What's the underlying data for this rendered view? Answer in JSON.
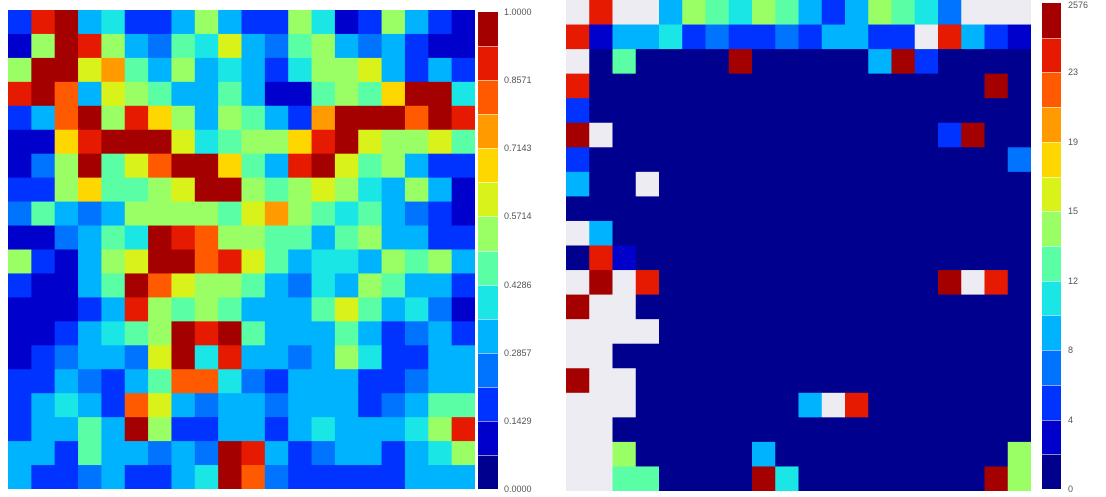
{
  "chart_data": [
    {
      "type": "heatmap",
      "title": "",
      "xlabel": "",
      "ylabel": "",
      "colorbar": {
        "min": 0.0,
        "max": 1.0,
        "levels": 14,
        "tick_labels": [
          "1.0000",
          "0.8571",
          "0.7143",
          "0.5714",
          "0.4286",
          "0.2857",
          "0.1429",
          "0.0000"
        ],
        "tick_values": [
          1.0,
          0.8571,
          0.7143,
          0.5714,
          0.4286,
          0.2857,
          0.1429,
          0.0
        ]
      },
      "grid": [
        [
          0.15,
          0.9,
          1.0,
          0.3,
          0.4,
          0.2,
          0.15,
          0.35,
          0.55,
          0.3,
          0.2,
          0.15,
          0.5,
          0.4,
          0.1,
          0.15,
          0.5,
          0.3,
          0.2,
          0.1
        ],
        [
          0.1,
          0.5,
          1.0,
          0.9,
          0.5,
          0.3,
          0.25,
          0.45,
          0.4,
          0.6,
          0.35,
          0.25,
          0.45,
          0.55,
          0.35,
          0.25,
          0.3,
          0.2,
          0.1,
          0.1
        ],
        [
          0.55,
          0.95,
          0.95,
          0.6,
          0.75,
          0.45,
          0.3,
          0.5,
          0.35,
          0.4,
          0.3,
          0.15,
          0.4,
          0.55,
          0.5,
          0.6,
          0.3,
          0.2,
          0.3,
          0.2
        ],
        [
          0.9,
          1.0,
          0.85,
          0.35,
          0.6,
          0.55,
          0.45,
          0.35,
          0.3,
          0.45,
          0.35,
          0.1,
          0.1,
          0.45,
          0.55,
          0.45,
          0.65,
          0.95,
          1.0,
          0.4
        ],
        [
          0.15,
          0.3,
          0.8,
          0.95,
          0.5,
          0.9,
          0.7,
          0.5,
          0.35,
          0.55,
          0.45,
          0.35,
          0.2,
          0.75,
          0.95,
          1.0,
          0.95,
          0.85,
          0.95,
          0.9
        ],
        [
          0.1,
          0.1,
          0.65,
          0.9,
          0.95,
          0.95,
          1.0,
          0.6,
          0.4,
          0.45,
          0.55,
          0.5,
          0.65,
          0.9,
          1.0,
          0.6,
          0.55,
          0.5,
          0.6,
          0.45
        ],
        [
          0.1,
          0.25,
          0.5,
          0.95,
          0.45,
          0.6,
          0.85,
          1.0,
          1.0,
          0.7,
          0.45,
          0.35,
          0.9,
          0.95,
          0.6,
          0.45,
          0.5,
          0.3,
          0.2,
          0.15
        ],
        [
          0.15,
          0.2,
          0.55,
          0.7,
          0.45,
          0.45,
          0.55,
          0.6,
          1.0,
          0.95,
          0.55,
          0.45,
          0.55,
          0.6,
          0.55,
          0.4,
          0.35,
          0.55,
          0.3,
          0.1
        ],
        [
          0.25,
          0.45,
          0.35,
          0.25,
          0.3,
          0.5,
          0.5,
          0.55,
          0.5,
          0.45,
          0.6,
          0.75,
          0.55,
          0.45,
          0.4,
          0.45,
          0.3,
          0.25,
          0.2,
          0.1
        ],
        [
          0.1,
          0.1,
          0.25,
          0.3,
          0.45,
          0.4,
          0.95,
          0.9,
          0.85,
          0.5,
          0.55,
          0.45,
          0.45,
          0.35,
          0.45,
          0.55,
          0.35,
          0.3,
          0.2,
          0.15
        ],
        [
          0.55,
          0.2,
          0.1,
          0.3,
          0.55,
          0.6,
          1.0,
          0.95,
          0.85,
          0.9,
          0.6,
          0.45,
          0.35,
          0.4,
          0.4,
          0.35,
          0.55,
          0.45,
          0.5,
          0.3
        ],
        [
          0.15,
          0.1,
          0.1,
          0.3,
          0.45,
          0.95,
          0.85,
          0.6,
          0.55,
          0.5,
          0.45,
          0.3,
          0.25,
          0.4,
          0.35,
          0.5,
          0.45,
          0.35,
          0.3,
          0.15
        ],
        [
          0.1,
          0.1,
          0.1,
          0.2,
          0.35,
          0.9,
          0.5,
          0.45,
          0.5,
          0.45,
          0.35,
          0.3,
          0.3,
          0.45,
          0.6,
          0.45,
          0.3,
          0.4,
          0.25,
          0.1
        ],
        [
          0.1,
          0.1,
          0.15,
          0.3,
          0.4,
          0.45,
          0.5,
          0.95,
          0.9,
          0.95,
          0.45,
          0.35,
          0.3,
          0.35,
          0.45,
          0.35,
          0.2,
          0.25,
          0.3,
          0.2
        ],
        [
          0.1,
          0.15,
          0.25,
          0.35,
          0.3,
          0.25,
          0.6,
          0.95,
          0.4,
          0.9,
          0.35,
          0.3,
          0.25,
          0.3,
          0.55,
          0.4,
          0.2,
          0.15,
          0.3,
          0.35
        ],
        [
          0.15,
          0.2,
          0.3,
          0.25,
          0.2,
          0.3,
          0.45,
          0.85,
          0.8,
          0.4,
          0.25,
          0.2,
          0.3,
          0.35,
          0.3,
          0.2,
          0.15,
          0.25,
          0.35,
          0.3
        ],
        [
          0.15,
          0.35,
          0.4,
          0.3,
          0.2,
          0.85,
          0.6,
          0.35,
          0.25,
          0.3,
          0.3,
          0.25,
          0.3,
          0.35,
          0.3,
          0.2,
          0.25,
          0.3,
          0.45,
          0.45
        ],
        [
          0.2,
          0.35,
          0.3,
          0.45,
          0.35,
          0.95,
          0.5,
          0.2,
          0.15,
          0.35,
          0.3,
          0.2,
          0.3,
          0.4,
          0.35,
          0.3,
          0.3,
          0.4,
          0.55,
          0.9
        ],
        [
          0.35,
          0.3,
          0.2,
          0.45,
          0.35,
          0.3,
          0.25,
          0.3,
          0.25,
          0.95,
          0.9,
          0.3,
          0.2,
          0.25,
          0.3,
          0.35,
          0.2,
          0.3,
          0.4,
          0.55
        ],
        [
          0.3,
          0.2,
          0.15,
          0.25,
          0.3,
          0.2,
          0.15,
          0.3,
          0.4,
          0.95,
          0.85,
          0.25,
          0.2,
          0.2,
          0.15,
          0.2,
          0.15,
          0.3,
          0.3,
          0.3
        ]
      ]
    },
    {
      "type": "heatmap",
      "title": "",
      "xlabel": "",
      "ylabel": "",
      "colorbar": {
        "min": 0,
        "max": 2576,
        "levels": 14,
        "tick_labels": [
          "2576",
          "23",
          "19",
          "15",
          "12",
          "8",
          "4",
          "0"
        ],
        "tick_values": [
          2576,
          23,
          19,
          15,
          12,
          8,
          4,
          0
        ]
      },
      "grid": [
        [
          -1,
          0.9,
          -1,
          -1,
          0.3,
          0.5,
          0.45,
          0.4,
          0.55,
          0.45,
          0.35,
          0.2,
          0.3,
          0.5,
          0.45,
          0.4,
          0.25,
          -1,
          -1,
          -1
        ],
        [
          0.9,
          0.1,
          0.3,
          0.35,
          0.4,
          0.15,
          0.25,
          0.2,
          0.15,
          0.25,
          0.2,
          0.3,
          0.35,
          0.15,
          0.2,
          -1,
          0.9,
          0.3,
          0.2,
          0.1
        ],
        [
          -1,
          0.05,
          0.45,
          0.05,
          0.05,
          0.05,
          0.05,
          0.95,
          0.05,
          0.05,
          0.05,
          0.05,
          0.05,
          0.3,
          0.95,
          0.2,
          0.05,
          0.05,
          0.05,
          0.05
        ],
        [
          0.9,
          0.05,
          0.05,
          0.05,
          0.05,
          0.05,
          0.05,
          0.05,
          0.05,
          0.05,
          0.05,
          0.05,
          0.05,
          0.05,
          0.05,
          0.05,
          0.05,
          0.05,
          0.95,
          0.05
        ],
        [
          0.2,
          0.05,
          0.05,
          0.05,
          0.05,
          0.05,
          0.05,
          0.05,
          0.05,
          0.05,
          0.05,
          0.05,
          0.05,
          0.05,
          0.05,
          0.05,
          0.05,
          0.05,
          0.05,
          0.05
        ],
        [
          0.95,
          -1,
          0.05,
          0.05,
          0.05,
          0.05,
          0.05,
          0.05,
          0.05,
          0.05,
          0.05,
          0.05,
          0.05,
          0.05,
          0.05,
          0.05,
          0.2,
          0.95,
          0.05,
          0.05
        ],
        [
          0.2,
          0.05,
          0.05,
          0.05,
          0.05,
          0.05,
          0.05,
          0.05,
          0.05,
          0.05,
          0.05,
          0.05,
          0.05,
          0.05,
          0.05,
          0.05,
          0.05,
          0.05,
          0.05,
          0.25
        ],
        [
          0.3,
          0.05,
          0.05,
          -1,
          0.05,
          0.05,
          0.05,
          0.05,
          0.05,
          0.05,
          0.05,
          0.05,
          0.05,
          0.05,
          0.05,
          0.05,
          0.05,
          0.05,
          0.05,
          0.05
        ],
        [
          0.05,
          0.05,
          0.05,
          0.05,
          0.05,
          0.05,
          0.05,
          0.05,
          0.05,
          0.05,
          0.05,
          0.05,
          0.05,
          0.05,
          0.05,
          0.05,
          0.05,
          0.05,
          0.05,
          0.05
        ],
        [
          -1,
          0.3,
          0.05,
          0.05,
          0.05,
          0.05,
          0.05,
          0.05,
          0.05,
          0.05,
          0.05,
          0.05,
          0.05,
          0.05,
          0.05,
          0.05,
          0.05,
          0.05,
          0.05,
          0.05
        ],
        [
          0.05,
          0.9,
          0.1,
          0.05,
          0.05,
          0.05,
          0.05,
          0.05,
          0.05,
          0.05,
          0.05,
          0.05,
          0.05,
          0.05,
          0.05,
          0.05,
          0.05,
          0.05,
          0.05,
          0.05
        ],
        [
          -1,
          0.95,
          -1,
          0.9,
          0.05,
          0.05,
          0.05,
          0.05,
          0.05,
          0.05,
          0.05,
          0.05,
          0.05,
          0.05,
          0.05,
          0.05,
          0.95,
          -1,
          0.9,
          0.05
        ],
        [
          0.95,
          -1,
          -1,
          0.05,
          0.05,
          0.05,
          0.05,
          0.05,
          0.05,
          0.05,
          0.05,
          0.05,
          0.05,
          0.05,
          0.05,
          0.05,
          0.05,
          0.05,
          0.05,
          0.05
        ],
        [
          -1,
          -1,
          -1,
          -1,
          0.05,
          0.05,
          0.05,
          0.05,
          0.05,
          0.05,
          0.05,
          0.05,
          0.05,
          0.05,
          0.05,
          0.05,
          0.05,
          0.05,
          0.05,
          0.05
        ],
        [
          -1,
          -1,
          0.05,
          0.05,
          0.05,
          0.05,
          0.05,
          0.05,
          0.05,
          0.05,
          0.05,
          0.05,
          0.05,
          0.05,
          0.05,
          0.05,
          0.05,
          0.05,
          0.05,
          0.05
        ],
        [
          0.95,
          -1,
          -1,
          0.05,
          0.05,
          0.05,
          0.05,
          0.05,
          0.05,
          0.05,
          0.05,
          0.05,
          0.05,
          0.05,
          0.05,
          0.05,
          0.05,
          0.05,
          0.05,
          0.05
        ],
        [
          -1,
          -1,
          -1,
          0.05,
          0.05,
          0.05,
          0.05,
          0.05,
          0.05,
          0.05,
          0.3,
          -1,
          0.9,
          0.05,
          0.05,
          0.05,
          0.05,
          0.05,
          0.05,
          0.05
        ],
        [
          -1,
          -1,
          0.05,
          0.05,
          0.05,
          0.05,
          0.05,
          0.05,
          0.05,
          0.05,
          0.05,
          0.05,
          0.05,
          0.05,
          0.05,
          0.05,
          0.05,
          0.05,
          0.05,
          0.05
        ],
        [
          -1,
          -1,
          0.55,
          0.05,
          0.05,
          0.05,
          0.05,
          0.05,
          0.3,
          0.05,
          0.05,
          0.05,
          0.05,
          0.05,
          0.05,
          0.05,
          0.05,
          0.05,
          0.05,
          0.55
        ],
        [
          -1,
          -1,
          0.45,
          0.45,
          0.05,
          0.05,
          0.05,
          0.05,
          0.95,
          0.4,
          0.05,
          0.05,
          0.05,
          0.05,
          0.05,
          0.05,
          0.05,
          0.05,
          0.95,
          0.5
        ]
      ]
    }
  ],
  "colors": {
    "palette": [
      "#00008f",
      "#0000cc",
      "#0033ff",
      "#0073ff",
      "#00b3ff",
      "#1ae6e6",
      "#5affa5",
      "#9aff65",
      "#d9f21a",
      "#ffd700",
      "#ff9a00",
      "#ff5a00",
      "#e61a00",
      "#a50000"
    ],
    "missing": "#ececf2"
  }
}
